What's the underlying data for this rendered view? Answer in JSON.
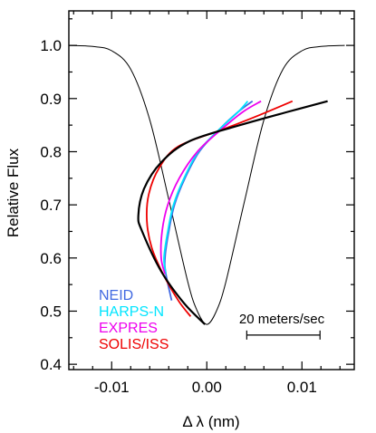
{
  "chart_data": {
    "type": "line",
    "xlabel": "Δ λ (nm)",
    "ylabel": "Relative Flux",
    "xlim": [
      -0.0145,
      0.0155
    ],
    "ylim": [
      0.39,
      1.065
    ],
    "x_ticks": [
      -0.01,
      0.0,
      0.01
    ],
    "x_tick_labels": [
      "-0.01",
      "0.00",
      "0.01"
    ],
    "y_ticks": [
      0.4,
      0.5,
      0.6,
      0.7,
      0.8,
      0.9,
      1.0
    ],
    "y_tick_labels": [
      "0.4",
      "0.5",
      "0.6",
      "0.7",
      "0.8",
      "0.9",
      "1.0"
    ],
    "grid": false,
    "legend_position": "bottom-left",
    "line_profile": {
      "color": "#000000",
      "points": [
        [
          -0.0145,
          1.0
        ],
        [
          -0.012,
          0.998
        ],
        [
          -0.01,
          0.99
        ],
        [
          -0.008,
          0.955
        ],
        [
          -0.006,
          0.86
        ],
        [
          -0.004,
          0.71
        ],
        [
          -0.002,
          0.555
        ],
        [
          -0.001,
          0.5
        ],
        [
          0.0,
          0.475
        ],
        [
          0.001,
          0.5
        ],
        [
          0.002,
          0.555
        ],
        [
          0.004,
          0.71
        ],
        [
          0.006,
          0.86
        ],
        [
          0.008,
          0.955
        ],
        [
          0.01,
          0.99
        ],
        [
          0.012,
          0.998
        ],
        [
          0.0145,
          1.0
        ]
      ]
    },
    "series": [
      {
        "name": "NEID",
        "color": "#4169e1",
        "points": [
          [
            -0.0037,
            0.52
          ],
          [
            -0.0043,
            0.57
          ],
          [
            -0.0044,
            0.6
          ],
          [
            -0.004,
            0.65
          ],
          [
            -0.0034,
            0.7
          ],
          [
            -0.0023,
            0.75
          ],
          [
            -0.0008,
            0.8
          ],
          [
            0.0012,
            0.84
          ],
          [
            0.0033,
            0.875
          ],
          [
            0.0048,
            0.895
          ]
        ]
      },
      {
        "name": "HARPS-N",
        "color": "#00e5ff",
        "points": [
          [
            -0.0043,
            0.57
          ],
          [
            -0.0045,
            0.6
          ],
          [
            -0.0041,
            0.65
          ],
          [
            -0.0035,
            0.7
          ],
          [
            -0.0024,
            0.75
          ],
          [
            -0.0009,
            0.8
          ],
          [
            0.0012,
            0.84
          ],
          [
            0.0033,
            0.875
          ],
          [
            0.0043,
            0.895
          ]
        ]
      },
      {
        "name": "EXPRES",
        "color": "#ee00ee",
        "points": [
          [
            -0.0044,
            0.57
          ],
          [
            -0.0048,
            0.6
          ],
          [
            -0.0047,
            0.65
          ],
          [
            -0.0041,
            0.7
          ],
          [
            -0.0029,
            0.75
          ],
          [
            -0.001,
            0.8
          ],
          [
            0.0014,
            0.84
          ],
          [
            0.0038,
            0.875
          ],
          [
            0.0057,
            0.895
          ]
        ]
      },
      {
        "name": "SOLIS/ISS",
        "color": "#ee0000",
        "points": [
          [
            -0.0017,
            0.49
          ],
          [
            -0.003,
            0.52
          ],
          [
            -0.0046,
            0.57
          ],
          [
            -0.0058,
            0.62
          ],
          [
            -0.0063,
            0.67
          ],
          [
            -0.0061,
            0.72
          ],
          [
            -0.005,
            0.77
          ],
          [
            -0.003,
            0.81
          ],
          [
            0.0014,
            0.84
          ],
          [
            0.005,
            0.865
          ],
          [
            0.009,
            0.895
          ]
        ]
      },
      {
        "name": "",
        "color": "#000000",
        "points": [
          [
            -0.0002,
            0.475
          ],
          [
            -0.0024,
            0.515
          ],
          [
            -0.0048,
            0.575
          ],
          [
            -0.0068,
            0.65
          ],
          [
            -0.0072,
            0.68
          ],
          [
            -0.0066,
            0.73
          ],
          [
            -0.0048,
            0.78
          ],
          [
            -0.0018,
            0.82
          ],
          [
            0.0035,
            0.85
          ],
          [
            0.0085,
            0.875
          ],
          [
            0.0127,
            0.895
          ]
        ]
      }
    ],
    "annotation": {
      "label": "20 meters/sec",
      "x_from": 0.0042,
      "x_to": 0.0119,
      "y": 0.455
    }
  }
}
